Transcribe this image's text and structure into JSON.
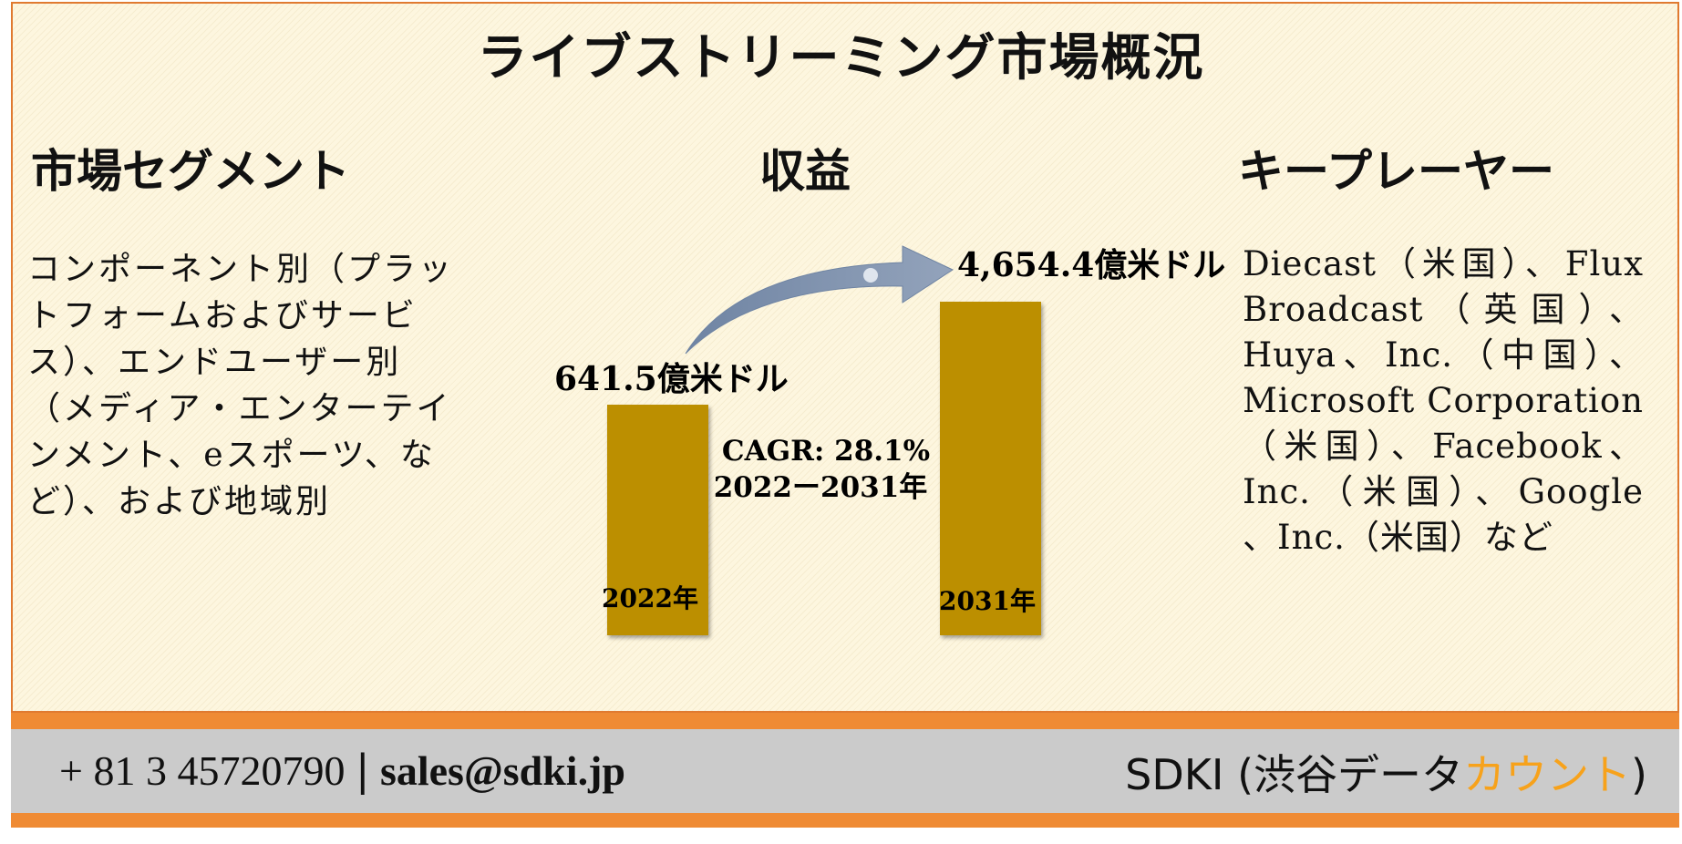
{
  "title": "ライブストリーミング市場概況",
  "segments": {
    "heading": "市場セグメント",
    "lines": [
      "コンポーネント別（プラッ",
      "トフォームおよびサービ",
      "ス）、エンドユーザー別",
      "（メディア・エンターテイ",
      "ンメント、eスポーツ、な",
      "ど）、および地域別"
    ]
  },
  "revenue": {
    "heading": "収益"
  },
  "players": {
    "heading": "キープレーヤー",
    "lines": [
      "Diecast（米国）、Flux",
      "Broadcast（英国）、",
      "Huya、Inc.（中国）、",
      "Microsoft Corporation",
      "（米国）、Facebook、",
      "Inc.（米国）、Google",
      "、Inc.（米国）など"
    ]
  },
  "chart_data": {
    "type": "bar",
    "categories": [
      "2022年",
      "2031年"
    ],
    "values": [
      641.5,
      4654.4
    ],
    "value_labels": [
      "641.5億米ドル",
      "4,654.4億米ドル"
    ],
    "cagr_label": "CAGR: 28.1%",
    "period_label": "2022ー2031年",
    "bar_color": "#bc8f00",
    "arrow_color": "#8798b1"
  },
  "footer": {
    "phone": "+ 81 3 45720790",
    "separator": "|",
    "email": "sales@sdki.jp",
    "brand_main": "SDKI (渋谷データ",
    "brand_accent": "カウント",
    "brand_end": ")",
    "accent_color": "#f7a21b",
    "bar_color": "#ef8b34"
  }
}
